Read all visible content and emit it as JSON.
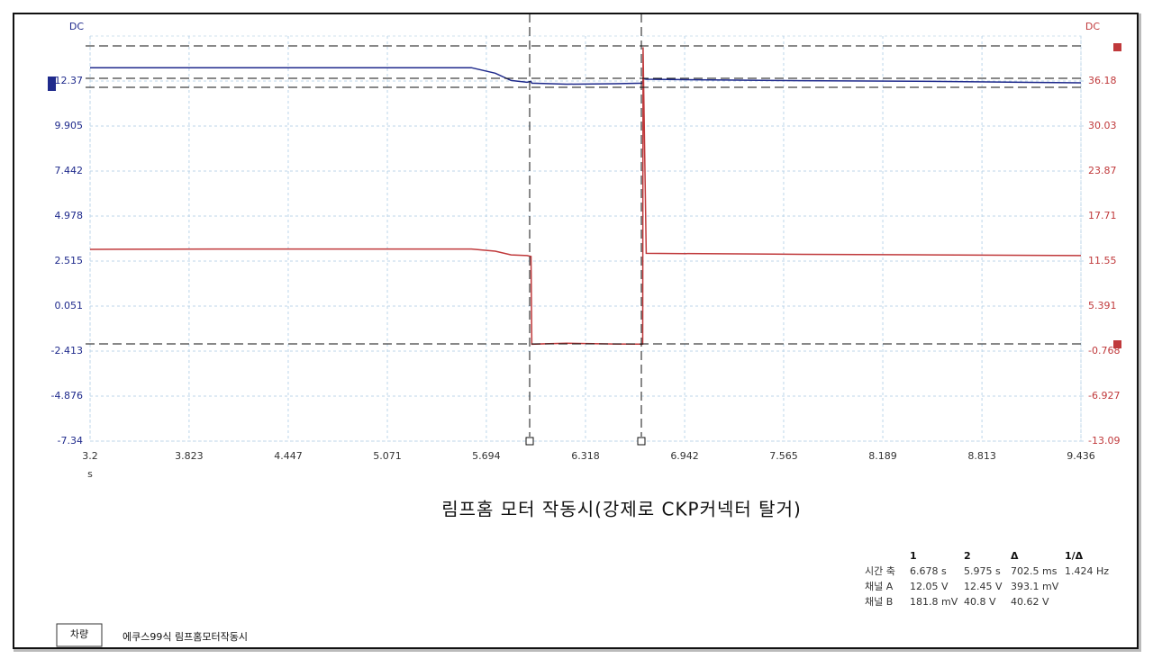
{
  "chart_data": {
    "type": "line",
    "ylabel": "DC",
    "y2label": "DC",
    "xlabel": "s",
    "x": [
      3.2,
      4.0,
      5.0,
      5.6,
      5.75,
      5.85,
      5.95,
      5.975,
      5.98,
      6.2,
      6.5,
      6.678,
      6.68,
      6.7,
      7.5,
      8.5,
      9.436
    ],
    "series": [
      {
        "name": "채널 A",
        "color": "#1f2a8c",
        "values": [
          13.1,
          13.1,
          13.1,
          13.1,
          12.8,
          12.4,
          12.3,
          12.35,
          12.25,
          12.2,
          12.22,
          12.25,
          12.5,
          12.47,
          12.4,
          12.35,
          12.27
        ]
      },
      {
        "name": "채널 B",
        "color": "#c0393b",
        "axis": "y2",
        "values": [
          13.15,
          13.2,
          13.2,
          13.2,
          12.9,
          12.4,
          12.3,
          12.17,
          0.18,
          0.3,
          0.2,
          0.18,
          40.8,
          12.6,
          12.5,
          12.4,
          12.3
        ]
      }
    ],
    "xlim": [
      3.2,
      9.436
    ],
    "xticks": [
      3.2,
      3.823,
      4.447,
      5.071,
      5.694,
      6.318,
      6.942,
      7.565,
      8.189,
      8.813,
      9.436
    ],
    "ylim": [
      -7.34,
      14.834
    ],
    "yticks": [
      -7.34,
      -4.876,
      -2.413,
      0.051,
      2.515,
      4.978,
      7.442,
      9.905,
      12.37
    ],
    "y2lim": [
      -13.09,
      42.34
    ],
    "y2ticks": [
      -13.09,
      -6.927,
      -0.768,
      5.391,
      11.55,
      17.71,
      23.87,
      30.03,
      36.18
    ],
    "grid": true
  },
  "caption": "림프홈 모터 작동시(강제로 CKP커넥터 탈거)",
  "measurements": {
    "header": [
      "1",
      "2",
      "Δ",
      "1/Δ"
    ],
    "rows": [
      [
        "시간 축",
        "6.678 s",
        "5.975 s",
        "702.5 ms",
        "1.424 Hz"
      ],
      [
        "채널 A",
        "12.05 V",
        "12.45 V",
        "393.1 mV"
      ],
      [
        "채널 B",
        "181.8 mV",
        "40.8 V",
        "40.62 V"
      ]
    ]
  },
  "footer": {
    "label": "차량",
    "text": "에쿠스99식 림프홈모터작동시"
  }
}
